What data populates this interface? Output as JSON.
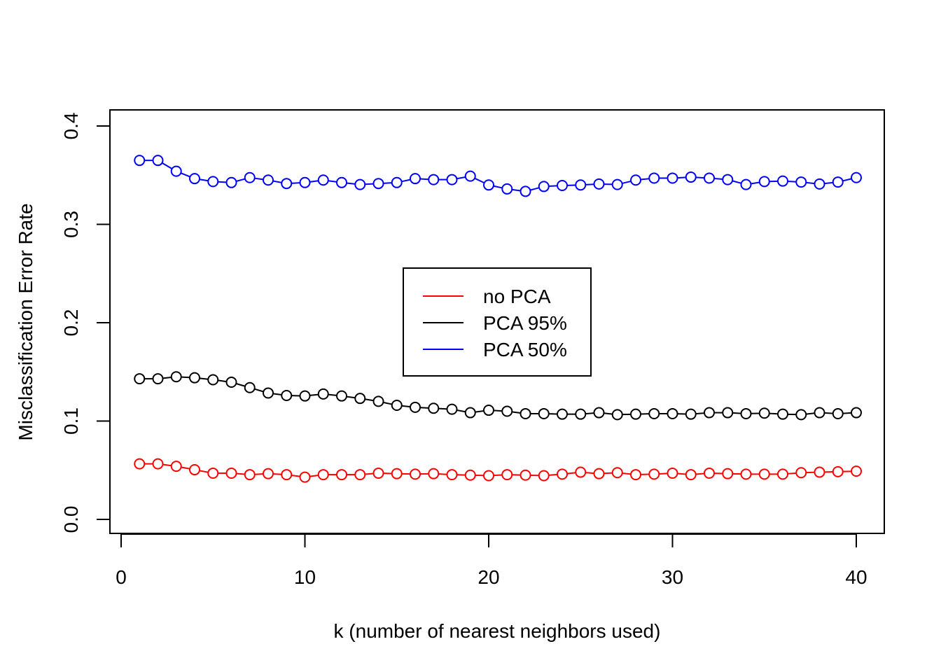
{
  "chart_data": {
    "type": "line",
    "title": "",
    "xlabel": "k (number of nearest neighbors used)",
    "ylabel": "Misclassification Error Rate",
    "xlim": [
      0,
      40
    ],
    "ylim": [
      0.0,
      0.4
    ],
    "x_ticks": [
      0,
      10,
      20,
      30,
      40
    ],
    "x_tick_labels": [
      "0",
      "10",
      "20",
      "30",
      "40"
    ],
    "y_ticks": [
      0.0,
      0.1,
      0.2,
      0.3,
      0.4
    ],
    "y_tick_labels": [
      "0.0",
      "0.1",
      "0.2",
      "0.3",
      "0.4"
    ],
    "grid": false,
    "legend_position": "center",
    "x": [
      1,
      2,
      3,
      4,
      5,
      6,
      7,
      8,
      9,
      10,
      11,
      12,
      13,
      14,
      15,
      16,
      17,
      18,
      19,
      20,
      21,
      22,
      23,
      24,
      25,
      26,
      27,
      28,
      29,
      30,
      31,
      32,
      33,
      34,
      35,
      36,
      37,
      38,
      39,
      40
    ],
    "series": [
      {
        "name": "no PCA",
        "color": "#ff0000",
        "values": [
          0.0565,
          0.0565,
          0.054,
          0.0505,
          0.047,
          0.047,
          0.0455,
          0.0465,
          0.0455,
          0.043,
          0.0455,
          0.0455,
          0.0455,
          0.047,
          0.0465,
          0.046,
          0.0465,
          0.0455,
          0.045,
          0.0445,
          0.0455,
          0.045,
          0.0445,
          0.046,
          0.048,
          0.0465,
          0.0475,
          0.0455,
          0.046,
          0.047,
          0.0455,
          0.047,
          0.0465,
          0.046,
          0.046,
          0.046,
          0.0475,
          0.048,
          0.0485,
          0.049
        ]
      },
      {
        "name": "PCA 95%",
        "color": "#000000",
        "values": [
          0.143,
          0.143,
          0.145,
          0.144,
          0.142,
          0.1395,
          0.134,
          0.1285,
          0.126,
          0.1255,
          0.1275,
          0.1255,
          0.123,
          0.12,
          0.116,
          0.114,
          0.113,
          0.112,
          0.1085,
          0.111,
          0.11,
          0.1075,
          0.1075,
          0.107,
          0.107,
          0.1085,
          0.1065,
          0.107,
          0.1075,
          0.1075,
          0.107,
          0.1085,
          0.1085,
          0.1075,
          0.108,
          0.107,
          0.1065,
          0.1085,
          0.1075,
          0.1085
        ]
      },
      {
        "name": "PCA 50%",
        "color": "#0000ff",
        "values": [
          0.365,
          0.365,
          0.354,
          0.3465,
          0.3435,
          0.3425,
          0.3475,
          0.345,
          0.3415,
          0.3425,
          0.345,
          0.3425,
          0.3405,
          0.3415,
          0.3425,
          0.3465,
          0.3455,
          0.3455,
          0.349,
          0.34,
          0.336,
          0.3335,
          0.3385,
          0.3395,
          0.34,
          0.341,
          0.3405,
          0.345,
          0.347,
          0.347,
          0.348,
          0.347,
          0.3455,
          0.3405,
          0.3435,
          0.344,
          0.343,
          0.341,
          0.343,
          0.3475
        ]
      }
    ]
  }
}
